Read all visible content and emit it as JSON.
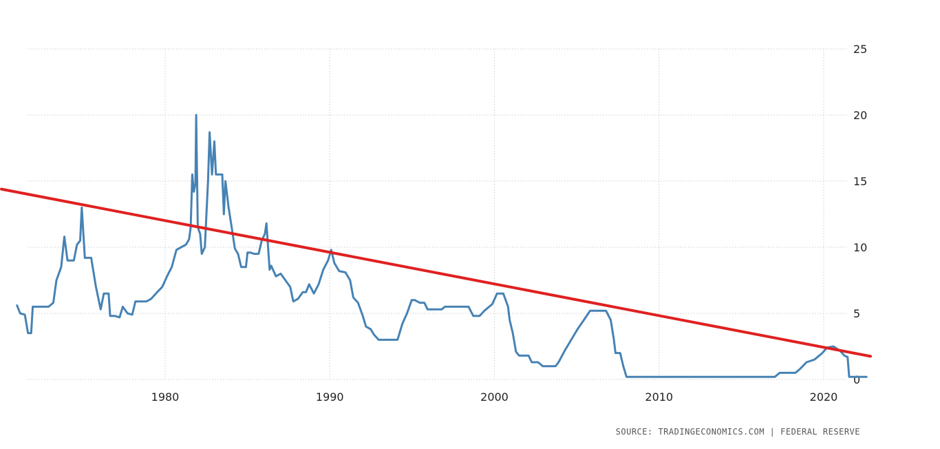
{
  "chart_data": {
    "type": "line",
    "title": "",
    "xlabel": "",
    "ylabel": "",
    "xlim": [
      1971.0,
      2022.6
    ],
    "ylim": [
      0,
      25
    ],
    "grid": true,
    "y_axis_side": "right",
    "x_ticks": [
      1980,
      1990,
      2000,
      2010,
      2020
    ],
    "y_ticks": [
      0,
      5,
      10,
      15,
      20,
      25
    ],
    "colors": {
      "series": "#4682b4",
      "trendline": "#e02020",
      "grid": "#cccccc"
    },
    "series": [
      {
        "values": [
          [
            1971.0,
            5.6
          ],
          [
            1971.2,
            5.0
          ],
          [
            1971.5,
            4.9
          ],
          [
            1971.7,
            3.5
          ],
          [
            1971.9,
            3.5
          ],
          [
            1972.0,
            5.5
          ],
          [
            1972.5,
            5.5
          ],
          [
            1973.0,
            5.5
          ],
          [
            1973.3,
            5.8
          ],
          [
            1973.5,
            7.5
          ],
          [
            1973.8,
            8.5
          ],
          [
            1974.0,
            10.8
          ],
          [
            1974.2,
            9.0
          ],
          [
            1974.6,
            9.0
          ],
          [
            1974.8,
            10.2
          ],
          [
            1975.0,
            10.5
          ],
          [
            1975.1,
            13.0
          ],
          [
            1975.3,
            9.2
          ],
          [
            1975.7,
            9.2
          ],
          [
            1976.0,
            7.0
          ],
          [
            1976.3,
            5.3
          ],
          [
            1976.5,
            6.5
          ],
          [
            1976.8,
            6.5
          ],
          [
            1976.9,
            4.8
          ],
          [
            1977.2,
            4.8
          ],
          [
            1977.5,
            4.7
          ],
          [
            1977.7,
            5.5
          ],
          [
            1978.0,
            5.0
          ],
          [
            1978.3,
            4.9
          ],
          [
            1978.5,
            5.9
          ],
          [
            1978.8,
            5.9
          ],
          [
            1979.2,
            5.9
          ],
          [
            1979.5,
            6.1
          ],
          [
            1979.8,
            6.5
          ],
          [
            1980.2,
            7.0
          ],
          [
            1980.5,
            7.8
          ],
          [
            1980.8,
            8.5
          ],
          [
            1981.1,
            9.8
          ],
          [
            1981.4,
            10.0
          ],
          [
            1981.7,
            10.2
          ],
          [
            1981.9,
            10.6
          ],
          [
            1982.0,
            11.5
          ],
          [
            1982.1,
            15.5
          ],
          [
            1982.2,
            14.2
          ],
          [
            1982.3,
            14.8
          ],
          [
            1982.35,
            20.0
          ],
          [
            1982.45,
            11.5
          ],
          [
            1982.6,
            11.0
          ],
          [
            1982.7,
            9.5
          ],
          [
            1982.9,
            10.0
          ],
          [
            1983.1,
            15.0
          ],
          [
            1983.2,
            18.7
          ],
          [
            1983.35,
            15.5
          ],
          [
            1983.5,
            18.0
          ],
          [
            1983.6,
            15.5
          ],
          [
            1984.0,
            15.5
          ],
          [
            1984.1,
            12.5
          ],
          [
            1984.2,
            15.0
          ],
          [
            1984.4,
            13.0
          ],
          [
            1984.6,
            11.5
          ],
          [
            1984.8,
            9.9
          ],
          [
            1985.0,
            9.5
          ],
          [
            1985.2,
            8.5
          ],
          [
            1985.5,
            8.5
          ],
          [
            1985.6,
            9.6
          ],
          [
            1985.8,
            9.6
          ],
          [
            1986.0,
            9.5
          ],
          [
            1986.3,
            9.5
          ],
          [
            1986.5,
            10.5
          ],
          [
            1986.7,
            11.0
          ],
          [
            1986.8,
            11.8
          ],
          [
            1987.0,
            8.3
          ],
          [
            1987.1,
            8.6
          ],
          [
            1987.4,
            7.8
          ],
          [
            1987.7,
            8.0
          ],
          [
            1988.0,
            7.5
          ],
          [
            1988.3,
            7.0
          ],
          [
            1988.5,
            5.9
          ],
          [
            1988.8,
            6.1
          ],
          [
            1989.1,
            6.6
          ],
          [
            1989.3,
            6.6
          ],
          [
            1989.5,
            7.2
          ],
          [
            1989.8,
            6.5
          ],
          [
            1990.1,
            7.2
          ],
          [
            1990.4,
            8.3
          ],
          [
            1990.7,
            9.0
          ],
          [
            1990.9,
            9.8
          ],
          [
            1991.1,
            8.8
          ],
          [
            1991.4,
            8.2
          ],
          [
            1991.8,
            8.1
          ],
          [
            1992.1,
            7.5
          ],
          [
            1992.3,
            6.2
          ],
          [
            1992.6,
            5.8
          ],
          [
            1992.9,
            4.8
          ],
          [
            1993.1,
            4.0
          ],
          [
            1993.4,
            3.8
          ],
          [
            1993.6,
            3.4
          ],
          [
            1993.9,
            3.0
          ],
          [
            1995.1,
            3.0
          ],
          [
            1995.4,
            4.2
          ],
          [
            1995.7,
            5.0
          ],
          [
            1996.0,
            6.0
          ],
          [
            1996.2,
            6.0
          ],
          [
            1996.5,
            5.8
          ],
          [
            1996.8,
            5.8
          ],
          [
            1997.0,
            5.3
          ],
          [
            1997.9,
            5.3
          ],
          [
            1998.1,
            5.5
          ],
          [
            1999.6,
            5.5
          ],
          [
            1999.9,
            4.8
          ],
          [
            2000.3,
            4.8
          ],
          [
            2000.6,
            5.2
          ],
          [
            2001.1,
            5.7
          ],
          [
            2001.4,
            6.5
          ],
          [
            2001.8,
            6.5
          ],
          [
            2002.1,
            5.5
          ],
          [
            2002.2,
            4.5
          ],
          [
            2002.4,
            3.5
          ],
          [
            2002.6,
            2.1
          ],
          [
            2002.8,
            1.8
          ],
          [
            2003.4,
            1.8
          ],
          [
            2003.6,
            1.3
          ],
          [
            2004.0,
            1.3
          ],
          [
            2004.3,
            1.0
          ],
          [
            2005.1,
            1.0
          ],
          [
            2005.3,
            1.3
          ],
          [
            2005.7,
            2.2
          ],
          [
            2006.1,
            3.0
          ],
          [
            2006.5,
            3.8
          ],
          [
            2006.9,
            4.5
          ],
          [
            2007.3,
            5.2
          ],
          [
            2008.3,
            5.2
          ],
          [
            2008.6,
            4.5
          ],
          [
            2008.8,
            3.0
          ],
          [
            2008.9,
            2.0
          ],
          [
            2009.2,
            2.0
          ],
          [
            2009.4,
            1.0
          ],
          [
            2009.6,
            0.2
          ],
          [
            2019.0,
            0.2
          ],
          [
            2019.3,
            0.5
          ],
          [
            2020.3,
            0.5
          ],
          [
            2020.6,
            0.8
          ],
          [
            2021.0,
            1.3
          ],
          [
            2021.5,
            1.5
          ],
          [
            2022.0,
            2.0
          ],
          [
            2022.3,
            2.4
          ],
          [
            2022.7,
            2.5
          ],
          [
            2023.1,
            2.2
          ],
          [
            2023.4,
            1.8
          ],
          [
            2023.6,
            1.7
          ],
          [
            2023.7,
            0.2
          ],
          [
            2024.8,
            0.2
          ]
        ]
      }
    ],
    "trendline": {
      "x": [
        1971.0,
        2022.6
      ],
      "y": [
        14.3,
        1.8
      ]
    }
  },
  "source_text": "SOURCE: TRADINGECONOMICS.COM | FEDERAL RESERVE"
}
